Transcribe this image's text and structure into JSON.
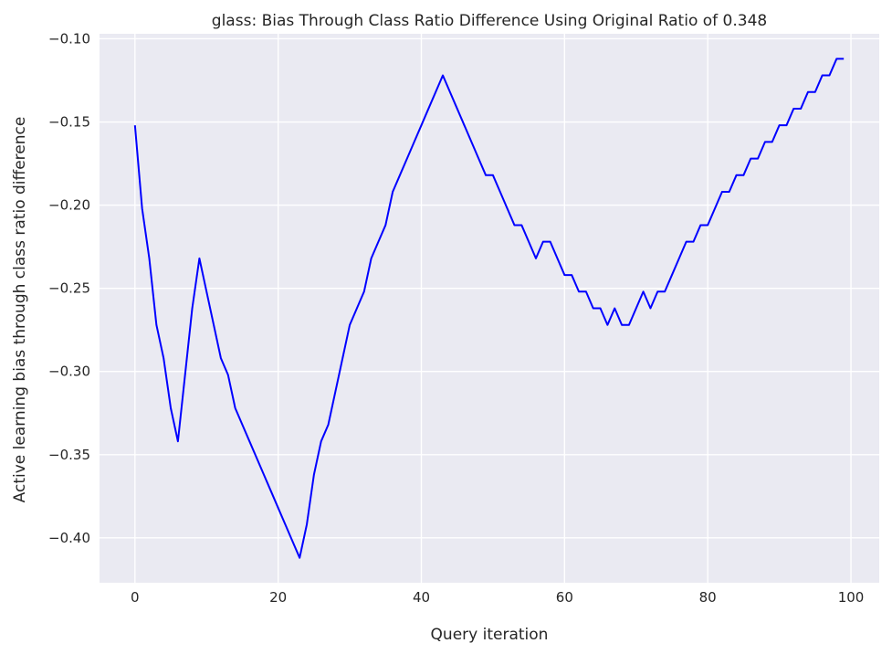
{
  "chart_data": {
    "type": "line",
    "title": "glass: Bias Through Class Ratio Difference Using Original Ratio of 0.348",
    "xlabel": "Query iteration",
    "ylabel": "Active learning bias through class ratio difference",
    "xlim": [
      -4.95,
      103.95
    ],
    "ylim": [
      -0.427,
      -0.097
    ],
    "xticks": [
      0,
      20,
      40,
      60,
      80,
      100
    ],
    "xtick_labels": [
      "0",
      "20",
      "40",
      "60",
      "80",
      "100"
    ],
    "yticks": [
      -0.4,
      -0.35,
      -0.3,
      -0.25,
      -0.2,
      -0.15,
      -0.1
    ],
    "ytick_labels": [
      "−0.40",
      "−0.35",
      "−0.30",
      "−0.25",
      "−0.20",
      "−0.15",
      "−0.10"
    ],
    "grid": true,
    "background_color": "#eaeaf2",
    "series": [
      {
        "color": "#0000ff",
        "x": [
          0,
          1,
          2,
          3,
          4,
          5,
          6,
          7,
          8,
          9,
          10,
          11,
          12,
          13,
          14,
          15,
          16,
          17,
          18,
          19,
          20,
          21,
          22,
          23,
          24,
          25,
          26,
          27,
          28,
          29,
          30,
          31,
          32,
          33,
          34,
          35,
          36,
          37,
          38,
          39,
          40,
          41,
          42,
          43,
          44,
          45,
          46,
          47,
          48,
          49,
          50,
          51,
          52,
          53,
          54,
          55,
          56,
          57,
          58,
          59,
          60,
          61,
          62,
          63,
          64,
          65,
          66,
          67,
          68,
          69,
          70,
          71,
          72,
          73,
          74,
          75,
          76,
          77,
          78,
          79,
          80,
          81,
          82,
          83,
          84,
          85,
          86,
          87,
          88,
          89,
          90,
          91,
          92,
          93,
          94,
          95,
          96,
          97,
          98,
          99
        ],
        "y": [
          -0.152,
          -0.202,
          -0.232,
          -0.272,
          -0.292,
          -0.322,
          -0.342,
          -0.302,
          -0.262,
          -0.232,
          -0.252,
          -0.272,
          -0.292,
          -0.302,
          -0.322,
          -0.332,
          -0.342,
          -0.352,
          -0.362,
          -0.372,
          -0.382,
          -0.392,
          -0.402,
          -0.412,
          -0.392,
          -0.362,
          -0.342,
          -0.332,
          -0.312,
          -0.292,
          -0.272,
          -0.262,
          -0.252,
          -0.232,
          -0.222,
          -0.212,
          -0.192,
          -0.182,
          -0.172,
          -0.162,
          -0.152,
          -0.142,
          -0.132,
          -0.122,
          -0.132,
          -0.142,
          -0.152,
          -0.162,
          -0.172,
          -0.182,
          -0.182,
          -0.192,
          -0.202,
          -0.212,
          -0.212,
          -0.222,
          -0.232,
          -0.222,
          -0.222,
          -0.232,
          -0.242,
          -0.242,
          -0.252,
          -0.252,
          -0.262,
          -0.262,
          -0.272,
          -0.262,
          -0.272,
          -0.272,
          -0.262,
          -0.252,
          -0.262,
          -0.252,
          -0.252,
          -0.242,
          -0.232,
          -0.222,
          -0.222,
          -0.212,
          -0.212,
          -0.202,
          -0.192,
          -0.192,
          -0.182,
          -0.182,
          -0.172,
          -0.172,
          -0.162,
          -0.162,
          -0.152,
          -0.152,
          -0.142,
          -0.142,
          -0.132,
          -0.132,
          -0.122,
          -0.122,
          -0.112,
          -0.112
        ]
      }
    ]
  }
}
